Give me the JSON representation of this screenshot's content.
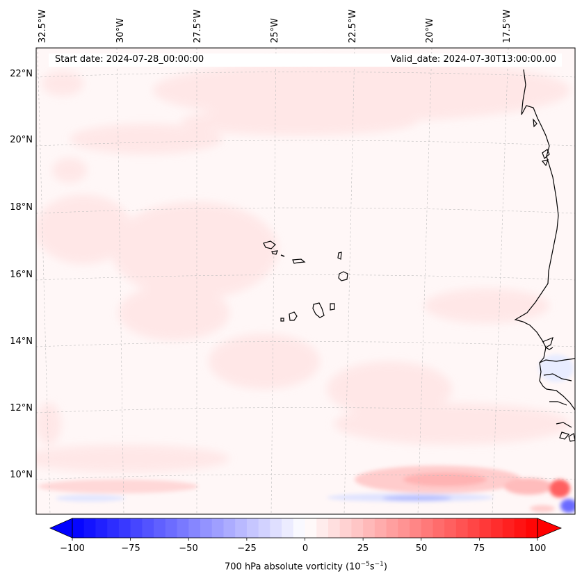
{
  "map": {
    "longitude_labels": [
      "32.5°W",
      "30°W",
      "27.5°W",
      "25°W",
      "22.5°W",
      "20°W",
      "17.5°W"
    ],
    "latitude_labels": [
      "22°N",
      "20°N",
      "18°N",
      "16°N",
      "14°N",
      "12°N",
      "10°N"
    ],
    "start_date": "Start date: 2024-07-28_00:00:00",
    "valid_date": "Valid_date: 2024-07-30T13:00:00.00"
  },
  "colorbar": {
    "ticks": [
      "−100",
      "−75",
      "−50",
      "−25",
      "0",
      "25",
      "50",
      "75",
      "100"
    ],
    "label_prefix": "700 hPa absolute vorticity (10",
    "label_exp1": "−5",
    "label_mid": "s",
    "label_exp2": "−1",
    "label_suffix": ")",
    "min_color": "#0000ff",
    "mid_color": "#ffffff",
    "max_color": "#ff0000"
  }
}
